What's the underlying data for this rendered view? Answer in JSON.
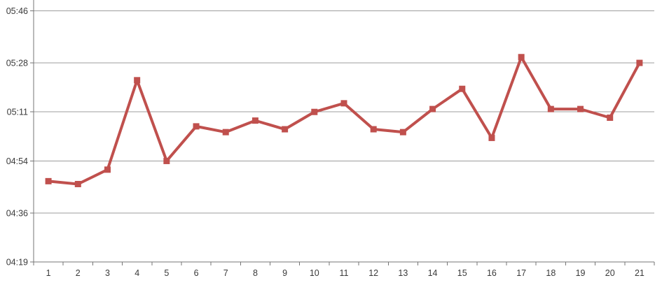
{
  "chart_data": {
    "type": "line",
    "title": "",
    "legend": "none",
    "grid": true,
    "categories": [
      "1",
      "2",
      "3",
      "4",
      "5",
      "6",
      "7",
      "8",
      "9",
      "10",
      "11",
      "12",
      "13",
      "14",
      "15",
      "16",
      "17",
      "18",
      "19",
      "20",
      "21"
    ],
    "series": [
      {
        "name": "",
        "color": "#c0504d",
        "marker": "square",
        "values": [
          "04:47",
          "04:46",
          "04:51",
          "05:22",
          "04:54",
          "05:06",
          "05:04",
          "05:08",
          "05:05",
          "05:11",
          "05:14",
          "05:05",
          "05:04",
          "05:12",
          "05:19",
          "05:02",
          "05:30",
          "05:12",
          "05:12",
          "05:09",
          "05:28"
        ]
      }
    ],
    "x_axis": {
      "label": "",
      "tick_labels": [
        "1",
        "2",
        "3",
        "4",
        "5",
        "6",
        "7",
        "8",
        "9",
        "10",
        "11",
        "12",
        "13",
        "14",
        "15",
        "16",
        "17",
        "18",
        "19",
        "20",
        "21"
      ]
    },
    "y_axis": {
      "label": "",
      "value_format": "hh:mm",
      "min": "04:19",
      "max_tick": "05:46",
      "tick_labels_top_to_bottom": [
        "05:46",
        "05:28",
        "05:11",
        "04:54",
        "04:36",
        "04:19"
      ]
    },
    "style": {
      "line_color": "#c0504d",
      "marker_color": "#c0504d",
      "line_width": 4,
      "marker_size": 9,
      "gridline_color": "#9c9c9c",
      "axis_color": "#757575",
      "tick_label_color": "#3a3a3a",
      "background": "#ffffff"
    }
  }
}
